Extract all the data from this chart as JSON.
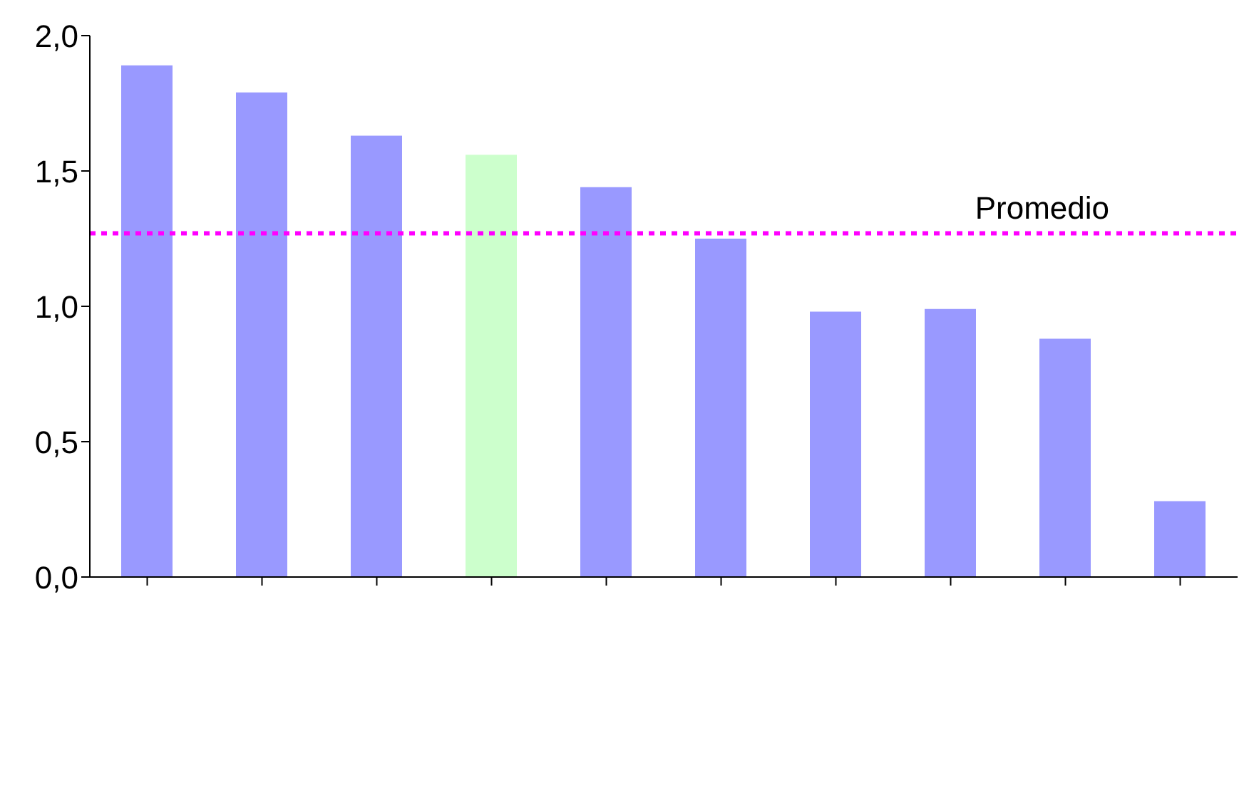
{
  "chart_data": {
    "type": "bar",
    "categories": [
      null,
      null,
      null,
      null,
      null,
      null,
      null,
      null,
      null,
      null
    ],
    "values": [
      1.89,
      1.79,
      1.63,
      1.56,
      1.44,
      1.25,
      0.98,
      0.99,
      0.88,
      0.28
    ],
    "colors": [
      "#9999ff",
      "#9999ff",
      "#9999ff",
      "#ccffcc",
      "#9999ff",
      "#9999ff",
      "#9999ff",
      "#9999ff",
      "#9999ff",
      "#9999ff"
    ],
    "ylim": [
      0,
      2
    ],
    "yticks": [
      {
        "value": 0,
        "label": "0,0"
      },
      {
        "value": 0.5,
        "label": "0,5"
      },
      {
        "value": 1,
        "label": "1,0"
      },
      {
        "value": 1.5,
        "label": "1,5"
      },
      {
        "value": 2,
        "label": "2,0"
      }
    ],
    "grid": false,
    "ref_lines": [
      {
        "axis": "y",
        "value": 1.27,
        "label": "Promedio",
        "color": "#ff00ff",
        "line_style": "dotted"
      }
    ]
  }
}
